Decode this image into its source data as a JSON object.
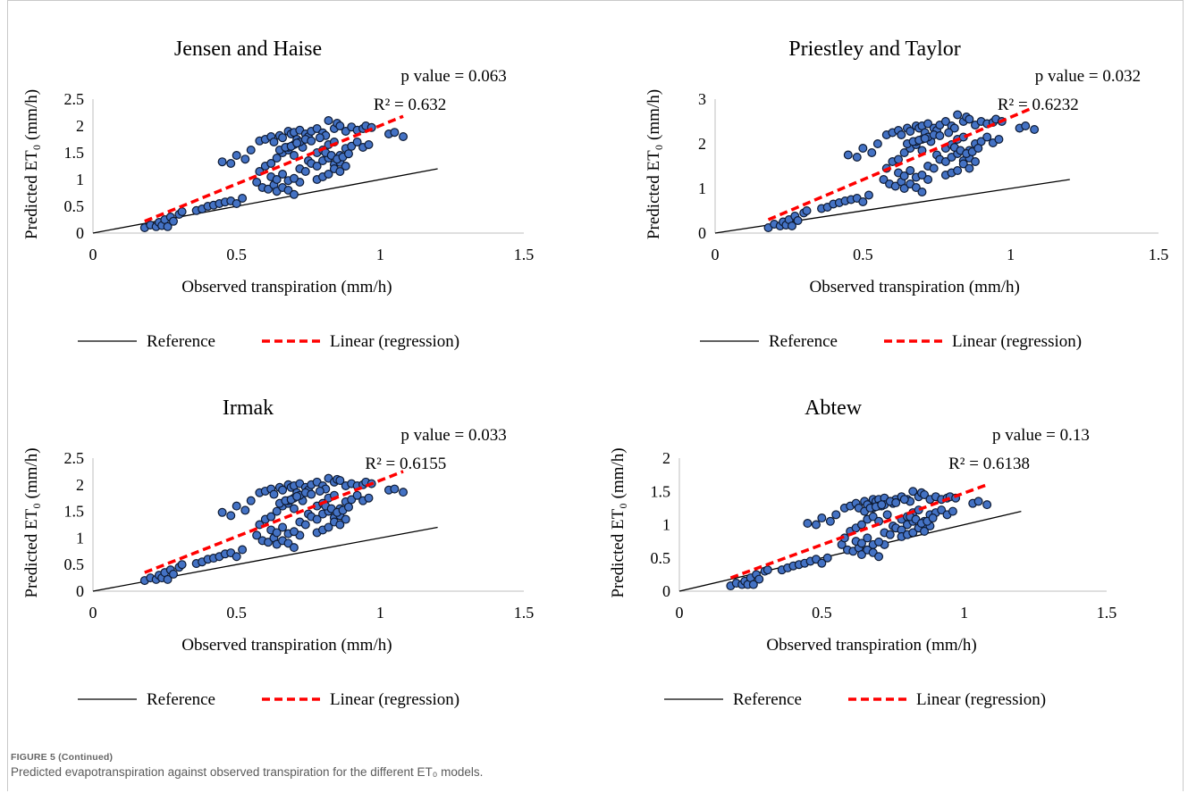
{
  "figure": {
    "caption_label": "FIGURE 5 (Continued)",
    "caption_text": "Predicted evapotranspiration against observed transpiration for the different ET₀ models."
  },
  "colors": {
    "marker_fill": "#4472C4",
    "marker_edge": "#0d1a33",
    "regression": "#FF0000",
    "reference": "#000000"
  },
  "chart_data": [
    {
      "type": "scatter",
      "title": "Jensen and Haise",
      "xlabel": "Observed transpiration (mm/h)",
      "ylabel": "Predicted ET₀ (mm/h)",
      "xlim": [
        0,
        1.5
      ],
      "ylim": [
        0,
        2.5
      ],
      "xticks": [
        "0",
        "0.5",
        "1",
        "1.5"
      ],
      "yticks": [
        "0",
        "0.5",
        "1",
        "1.5",
        "2",
        "2.5"
      ],
      "p_value_text": "p value = 0.063",
      "r2_text": "R² = 0.632",
      "legend": {
        "reference": "Reference",
        "regression": "Linear (regression)",
        "placement": "bottom"
      },
      "reference_line": {
        "x": [
          0,
          1.2
        ],
        "y": [
          0,
          1.2
        ]
      },
      "regression_line": {
        "x": [
          0.18,
          1.08
        ],
        "y": [
          0.22,
          2.18
        ]
      },
      "points": {
        "x": [
          0.18,
          0.2,
          0.22,
          0.23,
          0.24,
          0.25,
          0.26,
          0.27,
          0.28,
          0.3,
          0.31,
          0.36,
          0.38,
          0.4,
          0.42,
          0.44,
          0.46,
          0.48,
          0.5,
          0.52,
          0.45,
          0.48,
          0.5,
          0.53,
          0.55,
          0.58,
          0.6,
          0.62,
          0.63,
          0.65,
          0.66,
          0.68,
          0.69,
          0.7,
          0.71,
          0.72,
          0.74,
          0.75,
          0.76,
          0.78,
          0.8,
          0.81,
          0.82,
          0.84,
          0.85,
          0.86,
          0.88,
          0.9,
          0.92,
          0.94,
          0.95,
          0.97,
          1.03,
          1.05,
          1.08,
          0.57,
          0.59,
          0.61,
          0.63,
          0.64,
          0.66,
          0.68,
          0.7,
          0.72,
          0.58,
          0.6,
          0.62,
          0.64,
          0.66,
          0.68,
          0.7,
          0.73,
          0.75,
          0.78,
          0.8,
          0.82,
          0.84,
          0.86,
          0.88,
          0.9,
          0.92,
          0.94,
          0.96,
          0.62,
          0.64,
          0.66,
          0.68,
          0.7,
          0.72,
          0.74,
          0.76,
          0.78,
          0.8,
          0.82,
          0.84,
          0.86,
          0.78,
          0.8,
          0.82,
          0.84,
          0.86,
          0.88,
          0.68,
          0.7,
          0.72,
          0.74,
          0.65,
          0.67,
          0.69,
          0.71,
          0.76,
          0.79,
          0.81,
          0.83,
          0.85,
          0.87,
          0.89
        ],
        "y": [
          0.1,
          0.15,
          0.12,
          0.2,
          0.14,
          0.25,
          0.12,
          0.3,
          0.22,
          0.35,
          0.4,
          0.42,
          0.45,
          0.5,
          0.52,
          0.55,
          0.58,
          0.6,
          0.55,
          0.65,
          1.33,
          1.3,
          1.45,
          1.38,
          1.55,
          1.72,
          1.75,
          1.8,
          1.7,
          1.82,
          1.78,
          1.9,
          1.85,
          1.88,
          1.75,
          1.92,
          1.85,
          1.8,
          1.9,
          1.95,
          1.87,
          1.82,
          2.1,
          1.95,
          2.05,
          2.0,
          1.9,
          1.98,
          1.92,
          1.95,
          2.0,
          1.97,
          1.85,
          1.88,
          1.8,
          0.95,
          0.85,
          0.82,
          0.9,
          0.78,
          0.85,
          0.8,
          0.72,
          0.95,
          1.15,
          1.25,
          1.3,
          1.4,
          1.5,
          1.55,
          1.45,
          1.6,
          1.35,
          1.5,
          1.55,
          1.65,
          1.7,
          1.45,
          1.58,
          1.62,
          1.7,
          1.6,
          1.65,
          1.05,
          1.0,
          1.1,
          0.98,
          1.02,
          1.2,
          1.15,
          1.3,
          1.25,
          1.35,
          1.4,
          1.28,
          1.32,
          1.0,
          1.05,
          1.1,
          1.2,
          1.15,
          1.25,
          1.6,
          1.65,
          1.7,
          1.75,
          1.55,
          1.6,
          1.62,
          1.68,
          1.72,
          1.78,
          1.5,
          1.45,
          1.38,
          1.42,
          1.48
        ]
      }
    },
    {
      "type": "scatter",
      "title": "Priestley and Taylor",
      "xlabel": "Observed transpiration (mm/h)",
      "ylabel": "Predicted ET₀ (mm/h)",
      "xlim": [
        0,
        1.5
      ],
      "ylim": [
        0,
        3
      ],
      "xticks": [
        "0",
        "0.5",
        "1",
        "1.5"
      ],
      "yticks": [
        "0",
        "1",
        "2",
        "3"
      ],
      "p_value_text": "p value = 0.032",
      "r2_text": "R² = 0.6232",
      "legend": {
        "reference": "Reference",
        "regression": "Linear (regression)",
        "placement": "bottom"
      },
      "reference_line": {
        "x": [
          0,
          1.2
        ],
        "y": [
          0,
          1.2
        ]
      },
      "regression_line": {
        "x": [
          0.18,
          1.08
        ],
        "y": [
          0.3,
          2.82
        ]
      },
      "points": {
        "x": [
          0.18,
          0.2,
          0.22,
          0.23,
          0.24,
          0.25,
          0.26,
          0.27,
          0.28,
          0.3,
          0.31,
          0.36,
          0.38,
          0.4,
          0.42,
          0.44,
          0.46,
          0.48,
          0.5,
          0.52,
          0.45,
          0.48,
          0.5,
          0.53,
          0.55,
          0.58,
          0.6,
          0.62,
          0.63,
          0.65,
          0.66,
          0.68,
          0.69,
          0.7,
          0.71,
          0.72,
          0.74,
          0.75,
          0.76,
          0.78,
          0.8,
          0.81,
          0.82,
          0.84,
          0.85,
          0.86,
          0.88,
          0.9,
          0.92,
          0.94,
          0.95,
          0.97,
          1.03,
          1.05,
          1.08,
          0.57,
          0.59,
          0.61,
          0.63,
          0.64,
          0.66,
          0.68,
          0.7,
          0.72,
          0.58,
          0.6,
          0.62,
          0.64,
          0.66,
          0.68,
          0.7,
          0.73,
          0.75,
          0.78,
          0.8,
          0.82,
          0.84,
          0.86,
          0.88,
          0.9,
          0.92,
          0.94,
          0.96,
          0.62,
          0.64,
          0.66,
          0.68,
          0.7,
          0.72,
          0.74,
          0.76,
          0.78,
          0.8,
          0.82,
          0.84,
          0.86,
          0.78,
          0.8,
          0.82,
          0.84,
          0.86,
          0.88,
          0.68,
          0.7,
          0.72,
          0.74,
          0.65,
          0.67,
          0.69,
          0.71,
          0.76,
          0.79,
          0.81,
          0.83,
          0.85,
          0.87,
          0.89
        ],
        "y": [
          0.12,
          0.2,
          0.16,
          0.25,
          0.18,
          0.3,
          0.16,
          0.38,
          0.28,
          0.45,
          0.5,
          0.55,
          0.58,
          0.65,
          0.68,
          0.72,
          0.75,
          0.78,
          0.7,
          0.85,
          1.75,
          1.7,
          1.9,
          1.8,
          2.0,
          2.2,
          2.25,
          2.3,
          2.2,
          2.35,
          2.28,
          2.4,
          2.35,
          2.4,
          2.25,
          2.45,
          2.35,
          2.3,
          2.42,
          2.5,
          2.4,
          2.35,
          2.65,
          2.5,
          2.6,
          2.55,
          2.42,
          2.5,
          2.45,
          2.48,
          2.55,
          2.5,
          2.35,
          2.4,
          2.32,
          1.2,
          1.1,
          1.05,
          1.15,
          1.0,
          1.1,
          1.02,
          0.92,
          1.2,
          1.45,
          1.6,
          1.65,
          1.8,
          1.9,
          1.98,
          1.85,
          2.05,
          1.75,
          1.9,
          1.98,
          2.1,
          2.15,
          1.85,
          2.0,
          2.05,
          2.15,
          2.02,
          2.1,
          1.35,
          1.28,
          1.4,
          1.25,
          1.3,
          1.5,
          1.45,
          1.65,
          1.6,
          1.7,
          1.78,
          1.62,
          1.68,
          1.3,
          1.35,
          1.4,
          1.55,
          1.45,
          1.6,
          2.05,
          2.1,
          2.15,
          2.2,
          2.0,
          2.05,
          2.08,
          2.12,
          2.18,
          2.25,
          1.92,
          1.85,
          1.78,
          1.82,
          1.9
        ]
      }
    },
    {
      "type": "scatter",
      "title": "Irmak",
      "xlabel": "Observed transpiration (mm/h)",
      "ylabel": "Predicted ET₀ (mm/h)",
      "xlim": [
        0,
        1.5
      ],
      "ylim": [
        0,
        2.5
      ],
      "xticks": [
        "0",
        "0.5",
        "1",
        "1.5"
      ],
      "yticks": [
        "0",
        "0.5",
        "1",
        "1.5",
        "2",
        "2.5"
      ],
      "p_value_text": "p value = 0.033",
      "r2_text": "R² = 0.6155",
      "legend": {
        "reference": "Reference",
        "regression": "Linear (regression)",
        "placement": "bottom"
      },
      "reference_line": {
        "x": [
          0,
          1.2
        ],
        "y": [
          0,
          1.2
        ]
      },
      "regression_line": {
        "x": [
          0.18,
          1.08
        ],
        "y": [
          0.35,
          2.25
        ]
      },
      "points": {
        "x": [
          0.18,
          0.2,
          0.22,
          0.23,
          0.24,
          0.25,
          0.26,
          0.27,
          0.28,
          0.3,
          0.31,
          0.36,
          0.38,
          0.4,
          0.42,
          0.44,
          0.46,
          0.48,
          0.5,
          0.52,
          0.45,
          0.48,
          0.5,
          0.53,
          0.55,
          0.58,
          0.6,
          0.62,
          0.63,
          0.65,
          0.66,
          0.68,
          0.69,
          0.7,
          0.71,
          0.72,
          0.74,
          0.75,
          0.76,
          0.78,
          0.8,
          0.81,
          0.82,
          0.84,
          0.85,
          0.86,
          0.88,
          0.9,
          0.92,
          0.94,
          0.95,
          0.97,
          1.03,
          1.05,
          1.08,
          0.57,
          0.59,
          0.61,
          0.63,
          0.64,
          0.66,
          0.68,
          0.7,
          0.72,
          0.58,
          0.6,
          0.62,
          0.64,
          0.66,
          0.68,
          0.7,
          0.73,
          0.75,
          0.78,
          0.8,
          0.82,
          0.84,
          0.86,
          0.88,
          0.9,
          0.92,
          0.94,
          0.96,
          0.62,
          0.64,
          0.66,
          0.68,
          0.7,
          0.72,
          0.74,
          0.76,
          0.78,
          0.8,
          0.82,
          0.84,
          0.86,
          0.78,
          0.8,
          0.82,
          0.84,
          0.86,
          0.88,
          0.68,
          0.7,
          0.72,
          0.74,
          0.65,
          0.67,
          0.69,
          0.71,
          0.76,
          0.79,
          0.81,
          0.83,
          0.85,
          0.87,
          0.89
        ],
        "y": [
          0.2,
          0.25,
          0.22,
          0.3,
          0.25,
          0.35,
          0.22,
          0.4,
          0.32,
          0.45,
          0.5,
          0.52,
          0.55,
          0.6,
          0.62,
          0.65,
          0.7,
          0.72,
          0.65,
          0.78,
          1.48,
          1.42,
          1.6,
          1.52,
          1.7,
          1.85,
          1.88,
          1.92,
          1.82,
          1.95,
          1.9,
          2.0,
          1.95,
          1.98,
          1.85,
          2.02,
          1.95,
          1.9,
          2.0,
          2.05,
          1.98,
          1.92,
          2.12,
          2.05,
          2.1,
          2.08,
          1.98,
          2.02,
          1.98,
          2.0,
          2.05,
          2.02,
          1.9,
          1.92,
          1.86,
          1.05,
          0.95,
          0.92,
          1.0,
          0.88,
          0.95,
          0.9,
          0.82,
          1.05,
          1.25,
          1.35,
          1.4,
          1.5,
          1.6,
          1.65,
          1.55,
          1.7,
          1.45,
          1.6,
          1.65,
          1.75,
          1.8,
          1.55,
          1.68,
          1.72,
          1.8,
          1.7,
          1.75,
          1.15,
          1.1,
          1.2,
          1.08,
          1.12,
          1.3,
          1.25,
          1.4,
          1.35,
          1.45,
          1.5,
          1.38,
          1.42,
          1.1,
          1.15,
          1.2,
          1.3,
          1.25,
          1.35,
          1.7,
          1.75,
          1.8,
          1.85,
          1.65,
          1.7,
          1.72,
          1.78,
          1.82,
          1.88,
          1.6,
          1.55,
          1.48,
          1.52,
          1.58
        ]
      }
    },
    {
      "type": "scatter",
      "title": "Abtew",
      "xlabel": "Observed transpiration (mm/h)",
      "ylabel": "Predicted ET₀ (mm/h)",
      "xlim": [
        0,
        1.5
      ],
      "ylim": [
        0,
        2
      ],
      "xticks": [
        "0",
        "0.5",
        "1",
        "1.5"
      ],
      "yticks": [
        "0",
        "0.5",
        "1",
        "1.5",
        "2"
      ],
      "p_value_text": "p value = 0.13",
      "r2_text": "R² = 0.6138",
      "legend": {
        "reference": "Reference",
        "regression": "Linear (regression)",
        "placement": "bottom"
      },
      "reference_line": {
        "x": [
          0,
          1.2
        ],
        "y": [
          0,
          1.2
        ]
      },
      "regression_line": {
        "x": [
          0.18,
          1.08
        ],
        "y": [
          0.2,
          1.6
        ]
      },
      "points": {
        "x": [
          0.18,
          0.2,
          0.22,
          0.23,
          0.24,
          0.25,
          0.26,
          0.27,
          0.28,
          0.3,
          0.31,
          0.36,
          0.38,
          0.4,
          0.42,
          0.44,
          0.46,
          0.48,
          0.5,
          0.52,
          0.45,
          0.48,
          0.5,
          0.53,
          0.55,
          0.58,
          0.6,
          0.62,
          0.63,
          0.65,
          0.66,
          0.68,
          0.69,
          0.7,
          0.71,
          0.72,
          0.74,
          0.75,
          0.76,
          0.78,
          0.8,
          0.81,
          0.82,
          0.84,
          0.85,
          0.86,
          0.88,
          0.9,
          0.92,
          0.94,
          0.95,
          0.97,
          1.03,
          1.05,
          1.08,
          0.57,
          0.59,
          0.61,
          0.63,
          0.64,
          0.66,
          0.68,
          0.7,
          0.72,
          0.58,
          0.6,
          0.62,
          0.64,
          0.66,
          0.68,
          0.7,
          0.73,
          0.75,
          0.78,
          0.8,
          0.82,
          0.84,
          0.86,
          0.88,
          0.9,
          0.92,
          0.94,
          0.96,
          0.62,
          0.64,
          0.66,
          0.68,
          0.7,
          0.72,
          0.74,
          0.76,
          0.78,
          0.8,
          0.82,
          0.84,
          0.86,
          0.78,
          0.8,
          0.82,
          0.84,
          0.86,
          0.88,
          0.68,
          0.7,
          0.72,
          0.74,
          0.65,
          0.67,
          0.69,
          0.71,
          0.76,
          0.79,
          0.81,
          0.83,
          0.85,
          0.87,
          0.89
        ],
        "y": [
          0.08,
          0.12,
          0.1,
          0.15,
          0.1,
          0.2,
          0.1,
          0.25,
          0.18,
          0.3,
          0.32,
          0.32,
          0.35,
          0.38,
          0.4,
          0.42,
          0.45,
          0.48,
          0.42,
          0.5,
          1.02,
          1.0,
          1.1,
          1.05,
          1.15,
          1.25,
          1.28,
          1.32,
          1.25,
          1.35,
          1.3,
          1.38,
          1.35,
          1.38,
          1.28,
          1.4,
          1.35,
          1.32,
          1.38,
          1.42,
          1.38,
          1.35,
          1.5,
          1.42,
          1.48,
          1.45,
          1.38,
          1.42,
          1.38,
          1.4,
          1.42,
          1.4,
          1.32,
          1.35,
          1.3,
          0.7,
          0.62,
          0.6,
          0.65,
          0.55,
          0.62,
          0.58,
          0.52,
          0.7,
          0.8,
          0.9,
          0.95,
          1.0,
          1.08,
          1.12,
          1.05,
          1.15,
          0.98,
          1.08,
          1.12,
          1.18,
          1.22,
          1.05,
          1.15,
          1.18,
          1.22,
          1.15,
          1.2,
          0.75,
          0.72,
          0.8,
          0.7,
          0.74,
          0.88,
          0.85,
          0.95,
          0.92,
          1.0,
          1.05,
          0.95,
          0.98,
          0.82,
          0.85,
          0.88,
          0.95,
          0.9,
          0.98,
          1.25,
          1.28,
          1.3,
          1.35,
          1.2,
          1.25,
          1.27,
          1.3,
          1.33,
          1.38,
          1.12,
          1.08,
          1.02,
          1.05,
          1.1
        ]
      }
    }
  ]
}
